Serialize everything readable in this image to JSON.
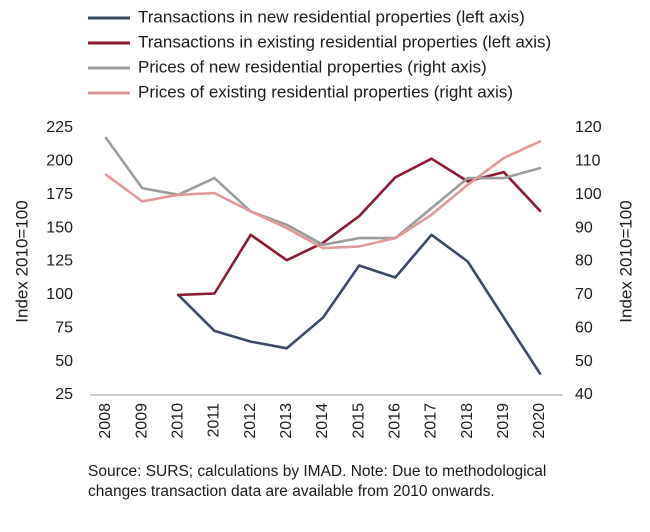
{
  "chart_data": {
    "type": "line",
    "categories": [
      "2008",
      "2009",
      "2010",
      "2011",
      "2012",
      "2013",
      "2014",
      "2015",
      "2016",
      "2017",
      "2018",
      "2019",
      "2020"
    ],
    "ylabel_left": "Index 2010=100",
    "ylabel_right": "Index 2010=100",
    "ylim_left": [
      25,
      225
    ],
    "ylim_right": [
      40,
      120
    ],
    "yticks_left": [
      25,
      50,
      75,
      100,
      125,
      150,
      175,
      200,
      225
    ],
    "yticks_right": [
      40,
      50,
      60,
      70,
      80,
      90,
      100,
      110,
      120
    ],
    "grid": false,
    "legend_position": "top",
    "series": [
      {
        "name": "Transactions in new residential properties (left axis)",
        "axis": "left",
        "color": "#3a4a66",
        "values": [
          null,
          null,
          100,
          73,
          65,
          60,
          83,
          122,
          113,
          145,
          125,
          83,
          41
        ]
      },
      {
        "name": "Transactions in existing residential properties (left axis)",
        "axis": "left",
        "color": "#8c1a32",
        "values": [
          null,
          null,
          100,
          101,
          145,
          126,
          139,
          159,
          188,
          202,
          185,
          192,
          163
        ]
      },
      {
        "name": "Prices of new residential properties (right axis)",
        "axis": "right",
        "color": "#9b9b9b",
        "values": [
          117,
          102,
          100,
          105,
          95,
          91,
          85,
          87,
          87,
          96,
          105,
          105,
          108
        ]
      },
      {
        "name": "Prices of existing residential properties (right axis)",
        "axis": "right",
        "color": "#e0999b",
        "values": [
          106,
          98,
          100,
          100.5,
          95,
          90,
          84,
          84.5,
          87,
          94,
          103,
          111,
          116
        ]
      }
    ]
  },
  "footnote": "Source: SURS; calculations by IMAD. Note: Due to methodological changes transaction data are available from 2010 onwards."
}
